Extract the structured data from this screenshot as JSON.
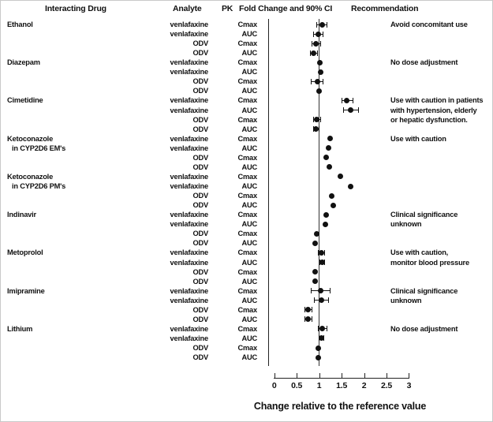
{
  "header": {
    "col_drug": "Interacting Drug",
    "col_analyte": "Analyte",
    "col_pk": "PK",
    "col_plot": "Fold Change and 90% CI",
    "col_rec": "Recommendation"
  },
  "chart_data": {
    "type": "scatter",
    "variant": "forest-plot-dots-with-90pct-CI",
    "x_axis_title": "Change relative to the reference value",
    "x_ticks": [
      "0",
      "0.5",
      "1",
      "1.5",
      "2",
      "2.5",
      "3"
    ],
    "xlim": [
      0,
      3
    ],
    "reference_line_x": 1,
    "grid": false,
    "groups": [
      {
        "drug": [
          "Ethanol"
        ],
        "recommendation": [
          "Avoid concomitant use"
        ],
        "rows": [
          {
            "analyte": "venlafaxine",
            "pk": "Cmax",
            "value": 1.06,
            "ci90": [
              0.93,
              1.19
            ]
          },
          {
            "analyte": "venlafaxine",
            "pk": "AUC",
            "value": 0.98,
            "ci90": [
              0.86,
              1.1
            ]
          },
          {
            "analyte": "ODV",
            "pk": "Cmax",
            "value": 0.93,
            "ci90": [
              0.83,
              1.04
            ]
          },
          {
            "analyte": "ODV",
            "pk": "AUC",
            "value": 0.88,
            "ci90": [
              0.79,
              0.97
            ]
          }
        ]
      },
      {
        "drug": [
          "Diazepam"
        ],
        "recommendation": [
          "No dose adjustment"
        ],
        "rows": [
          {
            "analyte": "venlafaxine",
            "pk": "Cmax",
            "value": 1.01,
            "ci90": null
          },
          {
            "analyte": "venlafaxine",
            "pk": "AUC",
            "value": 1.03,
            "ci90": null
          },
          {
            "analyte": "ODV",
            "pk": "Cmax",
            "value": 0.96,
            "ci90": [
              0.82,
              1.1
            ]
          },
          {
            "analyte": "ODV",
            "pk": "AUC",
            "value": 1.0,
            "ci90": null
          }
        ]
      },
      {
        "drug": [
          "Cimetidine"
        ],
        "recommendation": [
          "Use with caution in patients",
          "with hypertension, elderly",
          "or hepatic dysfunction."
        ],
        "rows": [
          {
            "analyte": "venlafaxine",
            "pk": "Cmax",
            "value": 1.62,
            "ci90": [
              1.49,
              1.76
            ]
          },
          {
            "analyte": "venlafaxine",
            "pk": "AUC",
            "value": 1.7,
            "ci90": [
              1.53,
              1.88
            ]
          },
          {
            "analyte": "ODV",
            "pk": "Cmax",
            "value": 0.95,
            "ci90": [
              0.87,
              1.04
            ]
          },
          {
            "analyte": "ODV",
            "pk": "AUC",
            "value": 0.93,
            "ci90": [
              0.86,
              1.0
            ]
          }
        ]
      },
      {
        "drug": [
          "Ketoconazole",
          "in CYP2D6 EM's"
        ],
        "recommendation": [
          "Use with caution"
        ],
        "rows": [
          {
            "analyte": "venlafaxine",
            "pk": "Cmax",
            "value": 1.24,
            "ci90": null
          },
          {
            "analyte": "venlafaxine",
            "pk": "AUC",
            "value": 1.21,
            "ci90": null
          },
          {
            "analyte": "ODV",
            "pk": "Cmax",
            "value": 1.15,
            "ci90": null
          },
          {
            "analyte": "ODV",
            "pk": "AUC",
            "value": 1.23,
            "ci90": null
          }
        ]
      },
      {
        "drug": [
          "Ketoconazole",
          "in CYP2D6 PM's"
        ],
        "recommendation": [],
        "rows": [
          {
            "analyte": "venlafaxine",
            "pk": "Cmax",
            "value": 1.47,
            "ci90": null
          },
          {
            "analyte": "venlafaxine",
            "pk": "AUC",
            "value": 1.7,
            "ci90": null
          },
          {
            "analyte": "ODV",
            "pk": "Cmax",
            "value": 1.28,
            "ci90": null
          },
          {
            "analyte": "ODV",
            "pk": "AUC",
            "value": 1.31,
            "ci90": null
          }
        ]
      },
      {
        "drug": [
          "Indinavir"
        ],
        "recommendation": [
          "Clinical significance",
          "unknown"
        ],
        "rows": [
          {
            "analyte": "venlafaxine",
            "pk": "Cmax",
            "value": 1.15,
            "ci90": null
          },
          {
            "analyte": "venlafaxine",
            "pk": "AUC",
            "value": 1.13,
            "ci90": null
          },
          {
            "analyte": "ODV",
            "pk": "Cmax",
            "value": 0.94,
            "ci90": null
          },
          {
            "analyte": "ODV",
            "pk": "AUC",
            "value": 0.91,
            "ci90": null
          }
        ]
      },
      {
        "drug": [
          "Metoprolol"
        ],
        "recommendation": [
          "Use with caution,",
          "monitor blood pressure"
        ],
        "rows": [
          {
            "analyte": "venlafaxine",
            "pk": "Cmax",
            "value": 1.05,
            "ci90": [
              0.98,
              1.13
            ]
          },
          {
            "analyte": "venlafaxine",
            "pk": "AUC",
            "value": 1.06,
            "ci90": [
              1.0,
              1.13
            ]
          },
          {
            "analyte": "ODV",
            "pk": "Cmax",
            "value": 0.91,
            "ci90": null
          },
          {
            "analyte": "ODV",
            "pk": "AUC",
            "value": 0.91,
            "ci90": null
          }
        ]
      },
      {
        "drug": [
          "Imipramine"
        ],
        "recommendation": [
          "Clinical significance",
          "unknown"
        ],
        "rows": [
          {
            "analyte": "venlafaxine",
            "pk": "Cmax",
            "value": 1.03,
            "ci90": [
              0.81,
              1.25
            ]
          },
          {
            "analyte": "venlafaxine",
            "pk": "AUC",
            "value": 1.05,
            "ci90": [
              0.89,
              1.21
            ]
          },
          {
            "analyte": "ODV",
            "pk": "Cmax",
            "value": 0.75,
            "ci90": [
              0.67,
              0.85
            ]
          },
          {
            "analyte": "ODV",
            "pk": "AUC",
            "value": 0.75,
            "ci90": [
              0.67,
              0.85
            ]
          }
        ]
      },
      {
        "drug": [
          "Lithium"
        ],
        "recommendation": [
          "No dose adjustment"
        ],
        "rows": [
          {
            "analyte": "venlafaxine",
            "pk": "Cmax",
            "value": 1.07,
            "ci90": [
              0.97,
              1.18
            ]
          },
          {
            "analyte": "venlafaxine",
            "pk": "AUC",
            "value": 1.05,
            "ci90": [
              0.99,
              1.12
            ]
          },
          {
            "analyte": "ODV",
            "pk": "Cmax",
            "value": 0.98,
            "ci90": null
          },
          {
            "analyte": "ODV",
            "pk": "AUC",
            "value": 0.98,
            "ci90": null
          }
        ]
      }
    ]
  }
}
